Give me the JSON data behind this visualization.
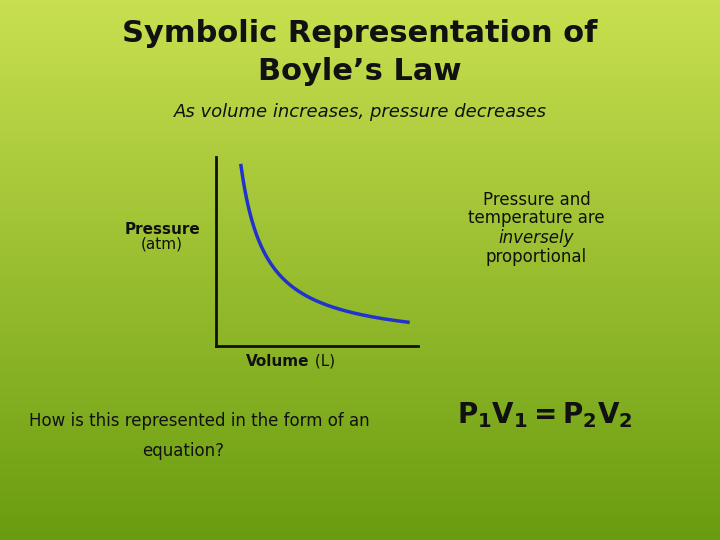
{
  "title_line1": "Symbolic Representation of",
  "title_line2": "Boyle’s Law",
  "subtitle": "As volume increases, pressure decreases",
  "bg_color_top": "#6a9c10",
  "bg_color_bottom": "#c8e050",
  "title_fontsize": 22,
  "subtitle_fontsize": 13,
  "ylabel_bold": "Pressure",
  "ylabel_normal": "(atm)",
  "xlabel_bold": "Volume",
  "xlabel_normal": " (L)",
  "right_text_line1": "Pressure and",
  "right_text_line2": "temperature are",
  "right_text_line3": "inversely",
  "right_text_line4": "proportional",
  "bottom_text": "How is this represented in the form of an ",
  "bottom_text2": "equation?",
  "curve_color": "#2233cc",
  "curve_linewidth": 2.5,
  "axes_color": "#111111",
  "text_color": "#111111"
}
